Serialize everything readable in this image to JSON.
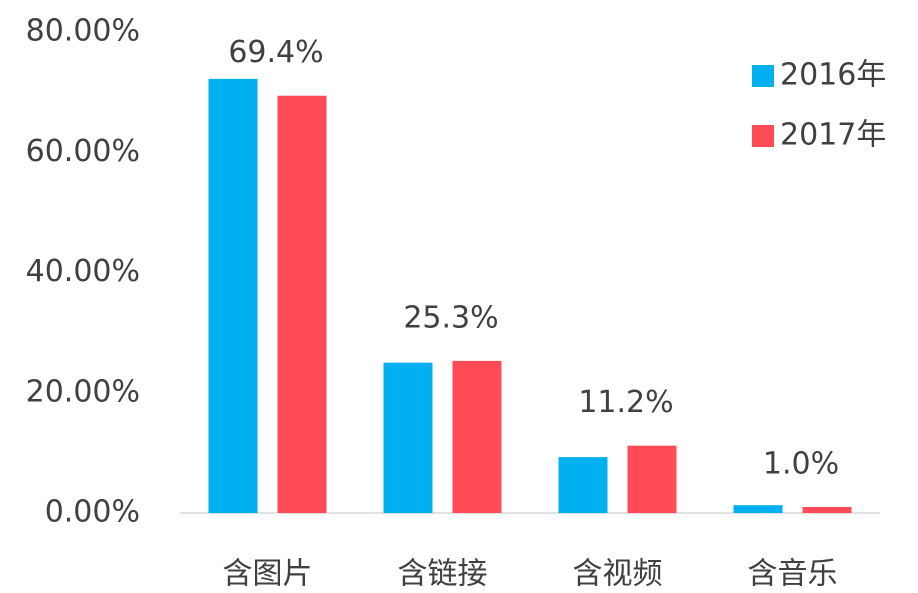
{
  "chart_data": {
    "type": "bar",
    "categories": [
      "含图片",
      "含链接",
      "含视频",
      "含音乐"
    ],
    "series": [
      {
        "name": "2016年",
        "color": "#00b0f0",
        "values": [
          72.2,
          25.0,
          9.3,
          1.3
        ]
      },
      {
        "name": "2017年",
        "color": "#ff4b55",
        "values": [
          69.4,
          25.3,
          11.2,
          1.0
        ],
        "value_labels": [
          "69.4%",
          "25.3%",
          "11.2%",
          "1.0%"
        ]
      }
    ],
    "ylim": [
      0,
      80
    ],
    "yticks": [
      {
        "value": 0,
        "label": "0.00%"
      },
      {
        "value": 20,
        "label": "20.00%"
      },
      {
        "value": 40,
        "label": "40.00%"
      },
      {
        "value": 60,
        "label": "60.00%"
      },
      {
        "value": 80,
        "label": "80.00%"
      }
    ],
    "grid": false,
    "legend": "top-right"
  }
}
